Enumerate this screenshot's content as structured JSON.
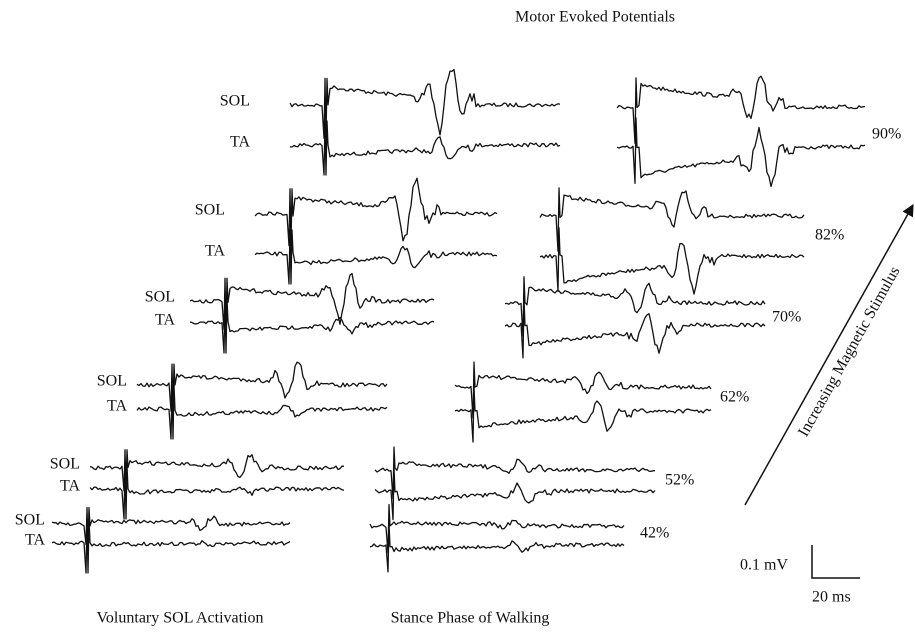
{
  "title": "Motor Evoked Potentials",
  "columns": [
    "Voluntary SOL Activation",
    "Stance Phase of Walking"
  ],
  "rows": [
    {
      "stimulus": "90%",
      "labels": [
        "SOL",
        "TA"
      ]
    },
    {
      "stimulus": "82%",
      "labels": [
        "SOL",
        "TA"
      ]
    },
    {
      "stimulus": "70%",
      "labels": [
        "SOL",
        "TA"
      ]
    },
    {
      "stimulus": "62%",
      "labels": [
        "SOL",
        "TA"
      ]
    },
    {
      "stimulus": "52%",
      "labels": [
        "SOL",
        "TA"
      ]
    },
    {
      "stimulus": "42%",
      "labels": [
        "SOL",
        "TA"
      ]
    }
  ],
  "scale": {
    "amplitude": "0.1 mV",
    "time": "20 ms"
  },
  "arrow_label": "Increasing Magnetic Stimulus"
}
